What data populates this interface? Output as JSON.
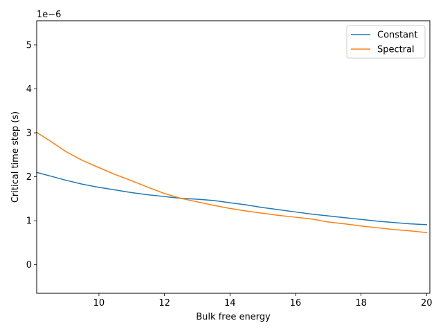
{
  "chart_data": {
    "type": "line",
    "title": "",
    "xlabel": "Bulk free energy",
    "ylabel": "Critical time step (s)",
    "y_offset_text": "1e−6",
    "xlim": [
      8.1,
      20.1
    ],
    "ylim": [
      -0.65,
      5.55
    ],
    "x_ticks": [
      10,
      12,
      14,
      16,
      18,
      20
    ],
    "x_tick_labels": [
      "10",
      "12",
      "14",
      "16",
      "18",
      "20"
    ],
    "y_ticks": [
      0,
      1,
      2,
      3,
      4,
      5
    ],
    "y_tick_labels": [
      "0",
      "1",
      "2",
      "3",
      "4",
      "5"
    ],
    "grid": false,
    "legend_position": "top-right",
    "x": [
      8.1,
      8.5,
      9.0,
      9.5,
      10.0,
      10.5,
      11.0,
      11.5,
      12.0,
      12.5,
      13.0,
      13.5,
      14.0,
      14.5,
      15.0,
      15.5,
      16.0,
      16.5,
      17.0,
      17.5,
      18.0,
      18.5,
      19.0,
      19.5,
      20.0
    ],
    "series": [
      {
        "name": "Constant",
        "color": "#1f77b4",
        "values": [
          2.1,
          2.02,
          1.92,
          1.83,
          1.76,
          1.7,
          1.64,
          1.59,
          1.55,
          1.51,
          1.49,
          1.46,
          1.41,
          1.36,
          1.3,
          1.25,
          1.2,
          1.15,
          1.11,
          1.07,
          1.03,
          0.99,
          0.96,
          0.93,
          0.91
        ]
      },
      {
        "name": "Spectral",
        "color": "#ff7f0e",
        "values": [
          3.01,
          2.82,
          2.57,
          2.37,
          2.21,
          2.05,
          1.91,
          1.76,
          1.62,
          1.51,
          1.43,
          1.35,
          1.28,
          1.22,
          1.17,
          1.12,
          1.08,
          1.04,
          0.97,
          0.93,
          0.88,
          0.84,
          0.8,
          0.77,
          0.73
        ]
      }
    ]
  }
}
